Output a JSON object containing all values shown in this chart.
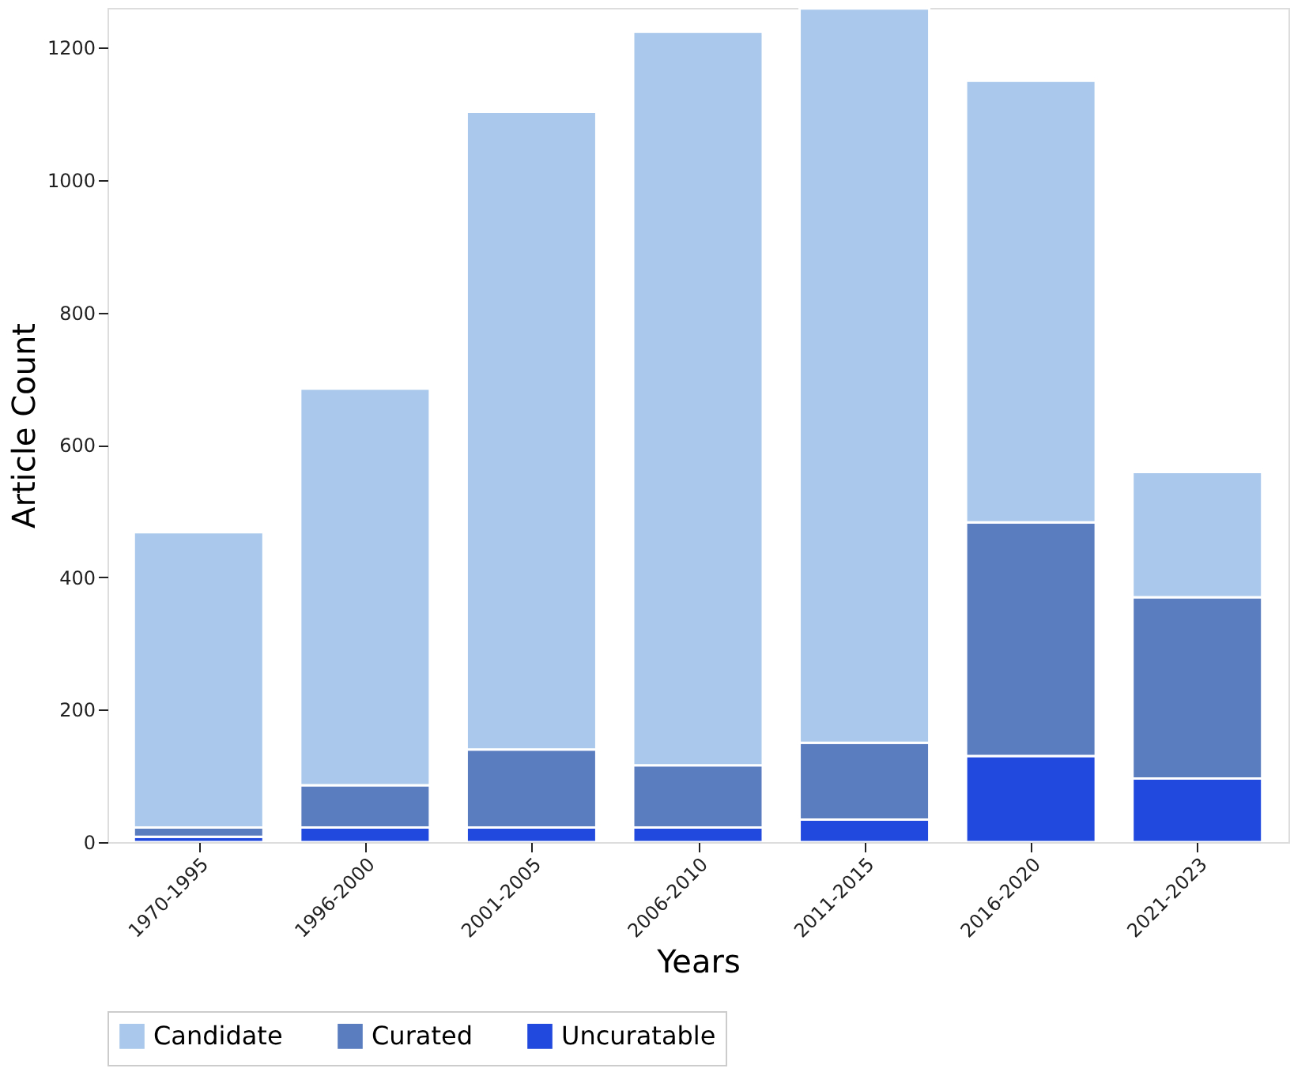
{
  "chart_data": {
    "type": "bar",
    "stacked": true,
    "xlabel": "Years",
    "ylabel": "Article Count",
    "categories": [
      "1970-1995",
      "1996-2000",
      "2001-2005",
      "2006-2010",
      "2011-2015",
      "2016-2020",
      "2021-2023"
    ],
    "series": [
      {
        "name": "Uncuratable",
        "color": "#2249dd",
        "values": [
          8,
          22,
          22,
          22,
          34,
          130,
          96
        ]
      },
      {
        "name": "Curated",
        "color": "#5a7dc0",
        "values": [
          14,
          64,
          118,
          94,
          116,
          353,
          274
        ]
      },
      {
        "name": "Candidate",
        "color": "#a9c8eb",
        "values": [
          446,
          599,
          963,
          1108,
          1109,
          667,
          189
        ]
      }
    ],
    "ylim": [
      0,
      1260
    ],
    "yticks": [
      0,
      200,
      400,
      600,
      800,
      1000,
      1200
    ],
    "grid": false,
    "legend": "bottom"
  }
}
